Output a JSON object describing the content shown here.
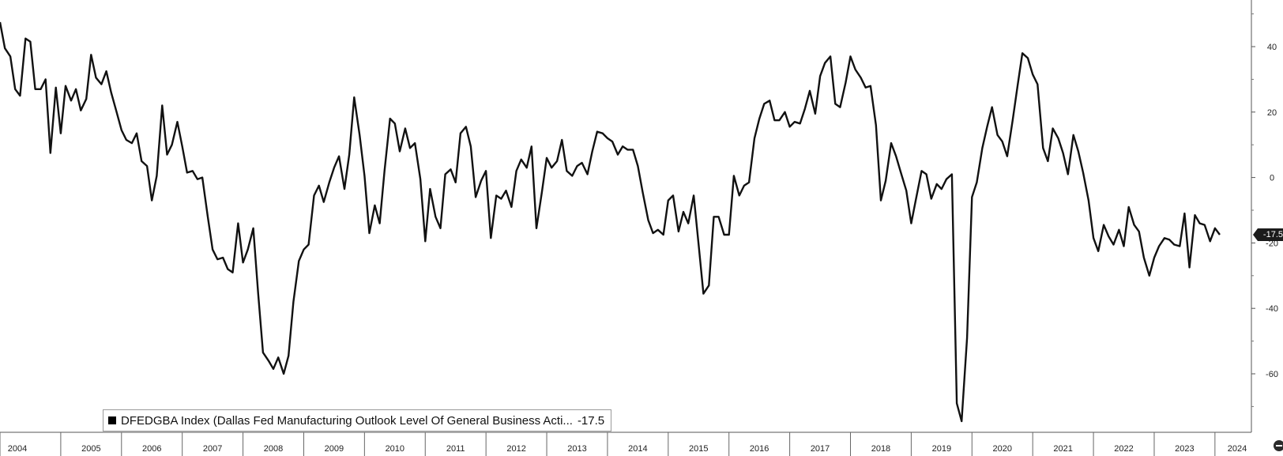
{
  "chart_data": {
    "type": "line",
    "title": "",
    "xlabel": "",
    "ylabel": "",
    "ylim": [
      -80,
      55
    ],
    "xlim": [
      2004.0,
      2024.6
    ],
    "yticks": [
      40,
      20,
      0,
      -20,
      -40,
      -60
    ],
    "xticks": [
      "2004",
      "2005",
      "2006",
      "2007",
      "2008",
      "2009",
      "2010",
      "2011",
      "2012",
      "2013",
      "2014",
      "2015",
      "2016",
      "2017",
      "2018",
      "2019",
      "2020",
      "2021",
      "2022",
      "2023",
      "2024"
    ],
    "grid": false,
    "legend_position": "bottom-left",
    "last_value_label": "-17.5",
    "series": [
      {
        "name": "DFEDGBA Index (Dallas Fed Manufacturing Outlook Level Of General Business Acti...",
        "legend_value": "-17.5",
        "color": "#111111",
        "values": [
          [
            2004.0,
            47.5
          ],
          [
            2004.08,
            39.5
          ],
          [
            2004.17,
            37.0
          ],
          [
            2004.25,
            27.0
          ],
          [
            2004.33,
            25.0
          ],
          [
            2004.42,
            42.5
          ],
          [
            2004.5,
            41.5
          ],
          [
            2004.58,
            27.0
          ],
          [
            2004.67,
            27.0
          ],
          [
            2004.75,
            30.0
          ],
          [
            2004.83,
            7.5
          ],
          [
            2004.92,
            27.5
          ],
          [
            2005.0,
            13.5
          ],
          [
            2005.08,
            28.0
          ],
          [
            2005.17,
            23.5
          ],
          [
            2005.25,
            27.0
          ],
          [
            2005.33,
            20.5
          ],
          [
            2005.42,
            24.0
          ],
          [
            2005.5,
            37.5
          ],
          [
            2005.58,
            30.5
          ],
          [
            2005.67,
            28.5
          ],
          [
            2005.75,
            32.5
          ],
          [
            2005.83,
            26.0
          ],
          [
            2005.92,
            20.0
          ],
          [
            2006.0,
            14.5
          ],
          [
            2006.08,
            11.5
          ],
          [
            2006.17,
            10.5
          ],
          [
            2006.25,
            13.5
          ],
          [
            2006.33,
            5.0
          ],
          [
            2006.42,
            3.5
          ],
          [
            2006.5,
            -7.0
          ],
          [
            2006.58,
            0.5
          ],
          [
            2006.67,
            22.0
          ],
          [
            2006.75,
            7.0
          ],
          [
            2006.83,
            10.0
          ],
          [
            2006.92,
            17.0
          ],
          [
            2007.0,
            9.5
          ],
          [
            2007.08,
            1.5
          ],
          [
            2007.17,
            2.0
          ],
          [
            2007.25,
            -0.5
          ],
          [
            2007.33,
            0.0
          ],
          [
            2007.42,
            -12.0
          ],
          [
            2007.5,
            -22.0
          ],
          [
            2007.58,
            -25.0
          ],
          [
            2007.67,
            -24.5
          ],
          [
            2007.75,
            -28.0
          ],
          [
            2007.83,
            -29.0
          ],
          [
            2007.92,
            -14.0
          ],
          [
            2008.0,
            -26.0
          ],
          [
            2008.08,
            -22.0
          ],
          [
            2008.17,
            -15.5
          ],
          [
            2008.25,
            -35.5
          ],
          [
            2008.33,
            -53.5
          ],
          [
            2008.42,
            -56.0
          ],
          [
            2008.5,
            -58.5
          ],
          [
            2008.58,
            -55.0
          ],
          [
            2008.67,
            -60.0
          ],
          [
            2008.75,
            -54.5
          ],
          [
            2008.83,
            -38.0
          ],
          [
            2008.92,
            -25.5
          ],
          [
            2009.0,
            -22.0
          ],
          [
            2009.08,
            -20.5
          ],
          [
            2009.17,
            -5.5
          ],
          [
            2009.25,
            -2.5
          ],
          [
            2009.33,
            -7.5
          ],
          [
            2009.42,
            -1.5
          ],
          [
            2009.5,
            3.0
          ],
          [
            2009.58,
            6.5
          ],
          [
            2009.67,
            -3.5
          ],
          [
            2009.75,
            7.0
          ],
          [
            2009.83,
            24.5
          ],
          [
            2009.92,
            13.0
          ],
          [
            2010.0,
            0.5
          ],
          [
            2010.08,
            -17.0
          ],
          [
            2010.17,
            -8.5
          ],
          [
            2010.25,
            -14.0
          ],
          [
            2010.33,
            2.0
          ],
          [
            2010.42,
            18.0
          ],
          [
            2010.5,
            16.5
          ],
          [
            2010.58,
            8.0
          ],
          [
            2010.67,
            15.0
          ],
          [
            2010.75,
            9.0
          ],
          [
            2010.83,
            10.5
          ],
          [
            2010.92,
            -0.5
          ],
          [
            2011.0,
            -19.5
          ],
          [
            2011.08,
            -3.5
          ],
          [
            2011.17,
            -12.0
          ],
          [
            2011.25,
            -15.5
          ],
          [
            2011.33,
            1.0
          ],
          [
            2011.42,
            2.5
          ],
          [
            2011.5,
            -1.5
          ],
          [
            2011.58,
            13.5
          ],
          [
            2011.67,
            15.5
          ],
          [
            2011.75,
            9.5
          ],
          [
            2011.83,
            -6.0
          ],
          [
            2011.92,
            -1.0
          ],
          [
            2012.0,
            2.0
          ],
          [
            2012.08,
            -18.5
          ],
          [
            2012.17,
            -5.5
          ],
          [
            2012.25,
            -6.5
          ],
          [
            2012.33,
            -4.0
          ],
          [
            2012.42,
            -9.0
          ],
          [
            2012.5,
            2.0
          ],
          [
            2012.58,
            5.5
          ],
          [
            2012.67,
            3.0
          ],
          [
            2012.75,
            9.5
          ],
          [
            2012.83,
            -15.5
          ],
          [
            2012.92,
            -4.5
          ],
          [
            2013.0,
            6.0
          ],
          [
            2013.08,
            3.0
          ],
          [
            2013.17,
            5.0
          ],
          [
            2013.25,
            11.5
          ],
          [
            2013.33,
            2.0
          ],
          [
            2013.42,
            0.5
          ],
          [
            2013.5,
            3.5
          ],
          [
            2013.58,
            4.5
          ],
          [
            2013.67,
            1.0
          ],
          [
            2013.75,
            8.0
          ],
          [
            2013.83,
            14.0
          ],
          [
            2013.92,
            13.5
          ],
          [
            2014.0,
            12.0
          ],
          [
            2014.08,
            11.0
          ],
          [
            2014.17,
            7.0
          ],
          [
            2014.25,
            9.5
          ],
          [
            2014.33,
            8.5
          ],
          [
            2014.42,
            8.5
          ],
          [
            2014.5,
            3.5
          ],
          [
            2014.58,
            -4.5
          ],
          [
            2014.67,
            -13.0
          ],
          [
            2014.75,
            -17.0
          ],
          [
            2014.83,
            -16.0
          ],
          [
            2014.92,
            -17.5
          ],
          [
            2015.0,
            -7.0
          ],
          [
            2015.08,
            -5.5
          ],
          [
            2015.17,
            -16.5
          ],
          [
            2015.25,
            -10.5
          ],
          [
            2015.33,
            -14.0
          ],
          [
            2015.42,
            -5.5
          ],
          [
            2015.5,
            -20.5
          ],
          [
            2015.58,
            -35.5
          ],
          [
            2015.67,
            -33.0
          ],
          [
            2015.75,
            -12.0
          ],
          [
            2015.83,
            -12.0
          ],
          [
            2015.92,
            -17.5
          ],
          [
            2016.0,
            -17.5
          ],
          [
            2016.08,
            0.5
          ],
          [
            2016.17,
            -5.5
          ],
          [
            2016.25,
            -2.5
          ],
          [
            2016.33,
            -1.5
          ],
          [
            2016.42,
            12.0
          ],
          [
            2016.5,
            18.0
          ],
          [
            2016.58,
            22.5
          ],
          [
            2016.67,
            23.5
          ],
          [
            2016.75,
            17.5
          ],
          [
            2016.83,
            17.5
          ],
          [
            2016.92,
            20.0
          ],
          [
            2017.0,
            15.5
          ],
          [
            2017.08,
            17.0
          ],
          [
            2017.17,
            16.5
          ],
          [
            2017.25,
            21.0
          ],
          [
            2017.33,
            26.5
          ],
          [
            2017.42,
            19.5
          ],
          [
            2017.5,
            31.0
          ],
          [
            2017.58,
            35.0
          ],
          [
            2017.67,
            37.0
          ],
          [
            2017.75,
            22.5
          ],
          [
            2017.83,
            21.5
          ],
          [
            2017.92,
            29.0
          ],
          [
            2018.0,
            37.0
          ],
          [
            2018.08,
            33.0
          ],
          [
            2018.17,
            30.5
          ],
          [
            2018.25,
            27.5
          ],
          [
            2018.33,
            28.0
          ],
          [
            2018.42,
            16.0
          ],
          [
            2018.5,
            -7.0
          ],
          [
            2018.58,
            -1.0
          ],
          [
            2018.67,
            10.5
          ],
          [
            2018.75,
            6.5
          ],
          [
            2018.83,
            1.5
          ],
          [
            2018.92,
            -4.0
          ],
          [
            2019.0,
            -14.0
          ],
          [
            2019.08,
            -6.5
          ],
          [
            2019.17,
            2.0
          ],
          [
            2019.25,
            1.0
          ],
          [
            2019.33,
            -6.5
          ],
          [
            2019.42,
            -2.0
          ],
          [
            2019.5,
            -3.5
          ],
          [
            2019.58,
            -0.5
          ],
          [
            2019.67,
            1.0
          ],
          [
            2019.75,
            -69.0
          ],
          [
            2019.83,
            -74.5
          ],
          [
            2019.92,
            -49.0
          ],
          [
            2020.0,
            -6.0
          ],
          [
            2020.08,
            -1.5
          ],
          [
            2020.17,
            9.0
          ],
          [
            2020.25,
            15.5
          ],
          [
            2020.33,
            21.5
          ],
          [
            2020.42,
            13.0
          ],
          [
            2020.5,
            11.0
          ],
          [
            2020.58,
            6.5
          ],
          [
            2020.67,
            17.5
          ],
          [
            2020.75,
            28.0
          ],
          [
            2020.83,
            38.0
          ],
          [
            2020.92,
            36.5
          ],
          [
            2021.0,
            31.5
          ],
          [
            2021.08,
            28.5
          ],
          [
            2021.17,
            9.0
          ],
          [
            2021.25,
            5.0
          ],
          [
            2021.33,
            15.0
          ],
          [
            2021.42,
            12.0
          ],
          [
            2021.5,
            7.5
          ],
          [
            2021.58,
            1.0
          ],
          [
            2021.67,
            13.0
          ],
          [
            2021.75,
            8.0
          ],
          [
            2021.83,
            1.5
          ],
          [
            2021.92,
            -7.0
          ],
          [
            2022.0,
            -18.5
          ],
          [
            2022.08,
            -22.5
          ],
          [
            2022.17,
            -14.5
          ],
          [
            2022.25,
            -18.0
          ],
          [
            2022.33,
            -20.5
          ],
          [
            2022.42,
            -16.0
          ],
          [
            2022.5,
            -21.0
          ],
          [
            2022.58,
            -9.0
          ],
          [
            2022.67,
            -14.5
          ],
          [
            2022.75,
            -16.5
          ],
          [
            2022.83,
            -24.5
          ],
          [
            2022.92,
            -30.0
          ],
          [
            2023.0,
            -24.5
          ],
          [
            2023.08,
            -21.0
          ],
          [
            2023.17,
            -18.5
          ],
          [
            2023.25,
            -19.0
          ],
          [
            2023.33,
            -20.5
          ],
          [
            2023.42,
            -21.0
          ],
          [
            2023.5,
            -11.0
          ],
          [
            2023.58,
            -27.5
          ],
          [
            2023.67,
            -11.5
          ],
          [
            2023.75,
            -14.0
          ],
          [
            2023.83,
            -14.5
          ],
          [
            2023.92,
            -19.5
          ],
          [
            2024.0,
            -15.5
          ],
          [
            2024.08,
            -17.5
          ]
        ]
      }
    ]
  }
}
